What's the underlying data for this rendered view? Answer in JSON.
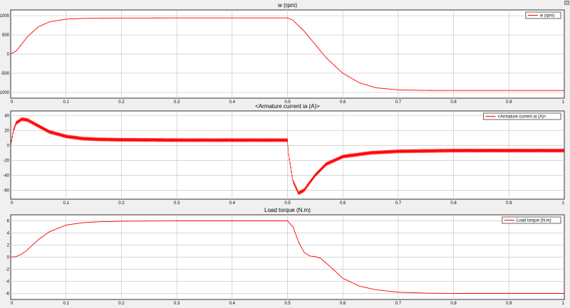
{
  "window": {
    "corner_button_glyph": "⊡"
  },
  "colors": {
    "series": "#ff0000",
    "background": "#f0f0f0",
    "axes": "#ffffff",
    "grid": "#c8c8c8"
  },
  "chart_data": [
    {
      "type": "line",
      "title": "w (rpm)",
      "xlabel": "",
      "ylabel": "",
      "xlim": [
        0,
        1
      ],
      "ylim": [
        -1150,
        1150
      ],
      "grid": true,
      "legend_position": "top-right",
      "x_ticks": [
        0,
        0.1,
        0.2,
        0.3,
        0.4,
        0.5,
        0.6,
        0.7,
        0.8,
        0.9,
        1
      ],
      "x_tick_labels": [
        "0",
        "0.1",
        "0.2",
        "0.3",
        "0.4",
        "0.5",
        "0.6",
        "0.7",
        "0.8",
        "0.9",
        "1"
      ],
      "y_ticks": [
        -1000,
        -500,
        0,
        500,
        1000
      ],
      "y_tick_labels": [
        "-1000",
        "-500",
        "0",
        "500",
        "1000"
      ],
      "series": [
        {
          "name": "w (rpm)",
          "x": [
            0,
            0.01,
            0.02,
            0.03,
            0.05,
            0.07,
            0.1,
            0.13,
            0.16,
            0.2,
            0.3,
            0.4,
            0.5,
            0.51,
            0.53,
            0.55,
            0.57,
            0.6,
            0.63,
            0.66,
            0.7,
            0.75,
            0.8,
            0.9,
            1.0
          ],
          "y": [
            0,
            80,
            260,
            450,
            710,
            840,
            910,
            930,
            936,
            940,
            942,
            943,
            943,
            880,
            600,
            250,
            -100,
            -500,
            -750,
            -880,
            -935,
            -948,
            -950,
            -950,
            -950
          ]
        }
      ]
    },
    {
      "type": "line",
      "title": "<Armature current ia (A)>",
      "xlabel": "",
      "ylabel": "",
      "xlim": [
        0,
        1
      ],
      "ylim": [
        -72,
        46
      ],
      "grid": true,
      "legend_position": "top-right",
      "x_ticks": [
        0,
        0.1,
        0.2,
        0.3,
        0.4,
        0.5,
        0.6,
        0.7,
        0.8,
        0.9,
        1
      ],
      "x_tick_labels": [
        "0",
        "0.1",
        "0.2",
        "0.3",
        "0.4",
        "0.5",
        "0.6",
        "0.7",
        "0.8",
        "0.9",
        "1"
      ],
      "y_ticks": [
        -60,
        -40,
        -20,
        0,
        20,
        40
      ],
      "y_tick_labels": [
        "-60",
        "-40",
        "-20",
        "0",
        "20",
        "40"
      ],
      "ripple_amplitude": 2.5,
      "series": [
        {
          "name": "<Armature current ia (A)>",
          "x": [
            0,
            0.005,
            0.01,
            0.02,
            0.03,
            0.05,
            0.07,
            0.1,
            0.13,
            0.16,
            0.2,
            0.3,
            0.4,
            0.5,
            0.502,
            0.51,
            0.52,
            0.53,
            0.54,
            0.55,
            0.57,
            0.6,
            0.65,
            0.7,
            0.8,
            0.9,
            1.0
          ],
          "y": [
            0,
            20,
            30,
            35,
            34,
            26,
            18,
            12,
            9,
            8,
            7.5,
            7,
            7,
            7,
            -12,
            -48,
            -64,
            -60,
            -50,
            -40,
            -25,
            -15,
            -10,
            -8,
            -7,
            -7,
            -7
          ]
        }
      ]
    },
    {
      "type": "line",
      "title": "Load torque (N.m)",
      "xlabel": "",
      "ylabel": "",
      "xlim": [
        0,
        1
      ],
      "ylim": [
        -7,
        7
      ],
      "grid": true,
      "legend_position": "top-right",
      "x_ticks": [
        0,
        0.1,
        0.2,
        0.3,
        0.4,
        0.5,
        0.6,
        0.7,
        0.8,
        0.9,
        1
      ],
      "x_tick_labels": [
        "0",
        "0.1",
        "0.2",
        "0.3",
        "0.4",
        "0.5",
        "0.6",
        "0.7",
        "0.8",
        "0.9",
        "1"
      ],
      "y_ticks": [
        -6,
        -4,
        -2,
        0,
        2,
        4,
        6
      ],
      "y_tick_labels": [
        "-6",
        "-4",
        "-2",
        "0",
        "2",
        "4",
        "6"
      ],
      "series": [
        {
          "name": "Load torque (N.m)",
          "x": [
            0,
            0.01,
            0.02,
            0.03,
            0.05,
            0.07,
            0.1,
            0.13,
            0.16,
            0.2,
            0.3,
            0.4,
            0.5,
            0.51,
            0.52,
            0.53,
            0.54,
            0.55,
            0.56,
            0.58,
            0.6,
            0.63,
            0.66,
            0.7,
            0.75,
            0.8,
            0.9,
            1.0
          ],
          "y": [
            0,
            0.1,
            0.5,
            1.2,
            2.9,
            4.2,
            5.3,
            5.7,
            5.85,
            5.95,
            6,
            6,
            6,
            5,
            2.5,
            0.8,
            0.2,
            0.1,
            -0.2,
            -1.8,
            -3.5,
            -4.8,
            -5.4,
            -5.8,
            -5.95,
            -6,
            -6,
            -6
          ]
        }
      ]
    }
  ]
}
